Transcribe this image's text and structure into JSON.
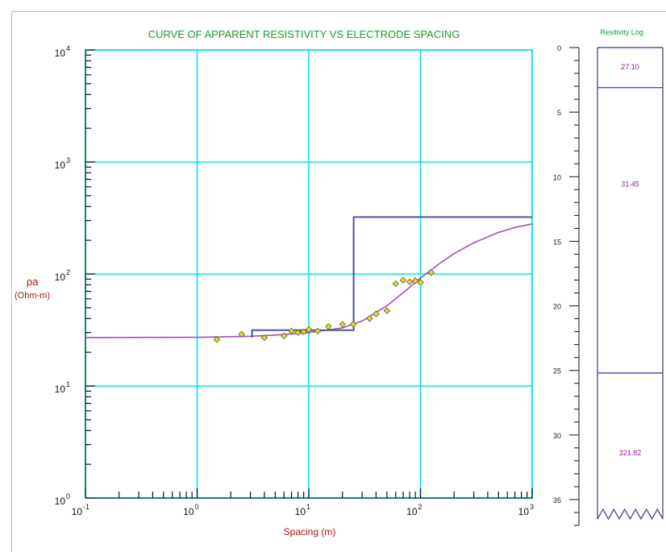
{
  "chart_data": [
    {
      "type": "scatter",
      "title": "CURVE OF APPARENT RESISTIVITY VS ELECTRODE SPACING",
      "xlabel": "Spacing (m)",
      "ylabel": "ρa",
      "ylabel_unit": "(Ohm-m)",
      "x_scale": "log",
      "y_scale": "log",
      "xlim": [
        0.1,
        1000
      ],
      "ylim": [
        1,
        10000
      ],
      "grid": true,
      "x_ticks": [
        {
          "base": "10",
          "exp": "-1",
          "value": 0.1
        },
        {
          "base": "10",
          "exp": "0",
          "value": 1
        },
        {
          "base": "10",
          "exp": "1",
          "value": 10
        },
        {
          "base": "10",
          "exp": "2",
          "value": 100
        },
        {
          "base": "10",
          "exp": "3",
          "value": 1000
        }
      ],
      "y_ticks": [
        {
          "base": "10",
          "exp": "0",
          "value": 1
        },
        {
          "base": "10",
          "exp": "1",
          "value": 10
        },
        {
          "base": "10",
          "exp": "2",
          "value": 100
        },
        {
          "base": "10",
          "exp": "3",
          "value": 1000
        },
        {
          "base": "10",
          "exp": "4",
          "value": 10000
        }
      ],
      "series": [
        {
          "kind": "observed-points",
          "color": "#e6e600",
          "edge_color": "#555555",
          "points": [
            {
              "x": 1.5,
              "y": 26
            },
            {
              "x": 2.5,
              "y": 29
            },
            {
              "x": 4,
              "y": 27
            },
            {
              "x": 6,
              "y": 28
            },
            {
              "x": 7,
              "y": 31
            },
            {
              "x": 8,
              "y": 30
            },
            {
              "x": 9,
              "y": 30.5
            },
            {
              "x": 10,
              "y": 32
            },
            {
              "x": 12,
              "y": 31
            },
            {
              "x": 15,
              "y": 34
            },
            {
              "x": 20,
              "y": 35.5
            },
            {
              "x": 25,
              "y": 35.5
            },
            {
              "x": 35,
              "y": 40
            },
            {
              "x": 40,
              "y": 44
            },
            {
              "x": 50,
              "y": 47
            },
            {
              "x": 60,
              "y": 82
            },
            {
              "x": 70,
              "y": 88
            },
            {
              "x": 80,
              "y": 85
            },
            {
              "x": 90,
              "y": 87
            },
            {
              "x": 100,
              "y": 84
            },
            {
              "x": 125,
              "y": 103
            }
          ]
        },
        {
          "kind": "model-curve",
          "color": "#a050b0",
          "points": [
            {
              "x": 0.1,
              "y": 27.1
            },
            {
              "x": 1,
              "y": 27.2
            },
            {
              "x": 3,
              "y": 27.8
            },
            {
              "x": 5,
              "y": 28.5
            },
            {
              "x": 10,
              "y": 30
            },
            {
              "x": 20,
              "y": 33
            },
            {
              "x": 30,
              "y": 38
            },
            {
              "x": 50,
              "y": 52
            },
            {
              "x": 70,
              "y": 68
            },
            {
              "x": 100,
              "y": 92
            },
            {
              "x": 150,
              "y": 125
            },
            {
              "x": 200,
              "y": 152
            },
            {
              "x": 300,
              "y": 190
            },
            {
              "x": 500,
              "y": 235
            },
            {
              "x": 700,
              "y": 260
            },
            {
              "x": 1000,
              "y": 280
            }
          ]
        },
        {
          "kind": "layer-model-step",
          "color": "#5050a0",
          "points": [
            {
              "x": 3.1,
              "y": 27.1
            },
            {
              "x": 3.1,
              "y": 31.45
            },
            {
              "x": 25.2,
              "y": 31.45
            },
            {
              "x": 25.2,
              "y": 321.82
            },
            {
              "x": 1000,
              "y": 321.82
            }
          ]
        }
      ]
    },
    {
      "type": "table",
      "title": "Resitivity Log",
      "depth_range": [
        0,
        37
      ],
      "depth_ticks": [
        0,
        5,
        10,
        15,
        20,
        25,
        30,
        35
      ],
      "layer_color": "#5050a0",
      "layers": [
        {
          "top": 0,
          "bottom": 3.1,
          "resistivity": "27.10"
        },
        {
          "top": 3.1,
          "bottom": 25.2,
          "resistivity": "31.45"
        },
        {
          "top": 25.2,
          "bottom": 37,
          "resistivity": "321.82"
        }
      ]
    }
  ]
}
